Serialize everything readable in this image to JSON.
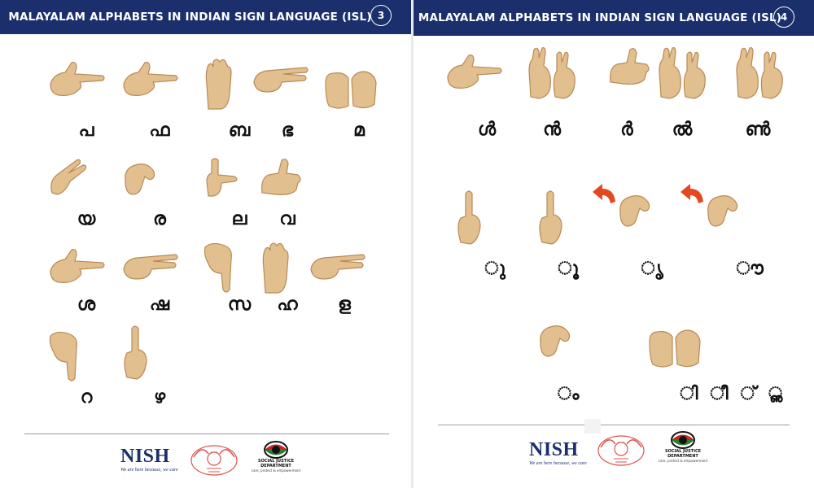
{
  "page3": {
    "title": "MALAYALAM ALPHABETS IN INDIAN SIGN LANGUAGE (ISL)",
    "page_number": "3",
    "signs": [
      {
        "letter": "പ",
        "hand": "point-right"
      },
      {
        "letter": "ഫ",
        "hand": "point-right"
      },
      {
        "letter": "ബ",
        "hand": "palm-up"
      },
      {
        "letter": "ഭ",
        "hand": "two-fingers-right"
      },
      {
        "letter": "മ",
        "hand": "two-fists"
      },
      {
        "letter": "യ",
        "hand": "fingers-angled"
      },
      {
        "letter": "ര",
        "hand": "hook"
      },
      {
        "letter": "ല",
        "hand": "l-shape"
      },
      {
        "letter": "വ",
        "hand": "thumb-up"
      },
      {
        "letter": "ശ",
        "hand": "point-right"
      },
      {
        "letter": "ഷ",
        "hand": "two-fingers-right"
      },
      {
        "letter": "സ",
        "hand": "point-down"
      },
      {
        "letter": "ഹ",
        "hand": "palm-up"
      },
      {
        "letter": "ള",
        "hand": "two-fingers-right"
      },
      {
        "letter": "റ",
        "hand": "point-down"
      },
      {
        "letter": "ഴ",
        "hand": "index-up"
      }
    ]
  },
  "page4": {
    "title": "MALAYALAM ALPHABETS IN INDIAN SIGN LANGUAGE (ISL)",
    "page_number": "4",
    "signs": [
      {
        "letter": "ൾ",
        "hand": "point-right"
      },
      {
        "letter": "ൻ",
        "hand": "two-hands"
      },
      {
        "letter": "ർ",
        "hand": "thumb-up"
      },
      {
        "letter": "ൽ",
        "hand": "two-hands"
      },
      {
        "letter": "ൺ",
        "hand": "two-hands"
      },
      {
        "letter": "ു",
        "hand": "index-up"
      },
      {
        "letter": "ൂ",
        "hand": "index-up"
      },
      {
        "letter": "ൃ",
        "hand": "hook",
        "arrow": true
      },
      {
        "letter": "ൗ",
        "hand": "hook",
        "arrow": true
      },
      {
        "letter": "ം",
        "hand": "hook"
      },
      {
        "letter": "ി ീ ് ൢ",
        "hand": "two-fists"
      }
    ]
  },
  "footer": {
    "nish_name": "NISH",
    "nish_tagline": "We are here because, we care",
    "sjd_name": "SOCIAL JUSTICE DEPARTMENT",
    "sjd_tagline": "care, protect & empowerment"
  },
  "colors": {
    "header_bg": "#1a2f6b",
    "skin": "#e2bf8f",
    "skin_shadow": "#b98a55",
    "arrow": "#e5481f",
    "emblem": "#d9534f"
  }
}
